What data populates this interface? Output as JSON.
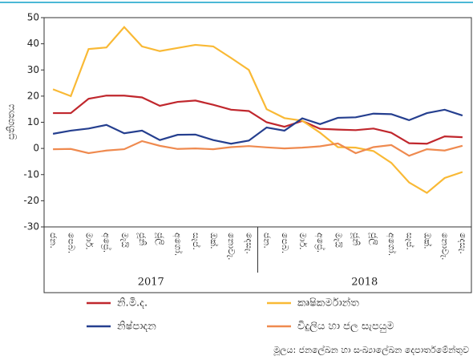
{
  "chart_data": {
    "type": "line",
    "y_label": "ප්‍රතිශතය",
    "categories": [
      "ජන.",
      "පෙබ.",
      "මාර්.",
      "අප්‍රේ.",
      "මැයි",
      "ජූනි",
      "ජූලි",
      "අගෝ.",
      "සැප්.",
      "ඔක්.",
      "නොවැ.",
      "දෙසැ.",
      "ජන.",
      "පෙබ.",
      "මාර්.",
      "අප්‍රේ.",
      "මැයි",
      "ජූනි",
      "ජූලි",
      "අගෝ.",
      "සැප්.",
      "ඔක්.",
      "නොවැ.",
      "දෙසැ."
    ],
    "groups": [
      {
        "label": "2017",
        "count": 12
      },
      {
        "label": "2018",
        "count": 12
      }
    ],
    "series": [
      {
        "name": "නි.මි.ද.",
        "color": "#c0272d",
        "values": [
          13.5,
          13.5,
          19,
          20.2,
          20.2,
          19.5,
          16.3,
          17.8,
          18.3,
          16.7,
          14.8,
          14.3,
          10,
          8.3,
          10.5,
          7.5,
          7.2,
          7,
          7.6,
          6,
          2,
          1.8,
          4.6,
          4.3
        ]
      },
      {
        "name": "කෘෂිකර්මාන්ත",
        "color": "#f9b935",
        "values": [
          22.6,
          20,
          38,
          38.6,
          46.4,
          39,
          37.2,
          38.4,
          39.6,
          39,
          34.6,
          30,
          15,
          11.6,
          10.6,
          6,
          0.5,
          0.3,
          -1,
          -5.5,
          -13,
          -17,
          -11.3,
          -9
        ]
      },
      {
        "name": "නිෂ්පාදන",
        "color": "#253f8f",
        "values": [
          5.6,
          6.8,
          7.6,
          9,
          5.8,
          6.8,
          3.2,
          5.2,
          5.3,
          3.2,
          1.8,
          3,
          8,
          6.8,
          11.5,
          9.3,
          11.7,
          11.9,
          13.3,
          13.1,
          10.8,
          13.5,
          14.8,
          12.6
        ]
      },
      {
        "name": "විදුලිය හා ජල සැපයුම",
        "color": "#ef8a4f",
        "values": [
          -0.3,
          -0.2,
          -1.8,
          -0.8,
          -0.3,
          2.8,
          1,
          -0.2,
          0,
          -0.3,
          0.5,
          0.9,
          0.4,
          0,
          0.3,
          0.8,
          1.9,
          -1.8,
          0.5,
          1.3,
          -2.8,
          -0.3,
          -0.8,
          1
        ]
      }
    ],
    "ylim": [
      -30,
      50
    ],
    "yticks": [
      -30,
      -20,
      -10,
      0,
      10,
      20,
      30,
      40,
      50
    ],
    "grid": false,
    "source": "මූලය: ජනලේඛන හා සංඛ්‍යාලේඛන දෙපාර්තමේන්තුව"
  }
}
